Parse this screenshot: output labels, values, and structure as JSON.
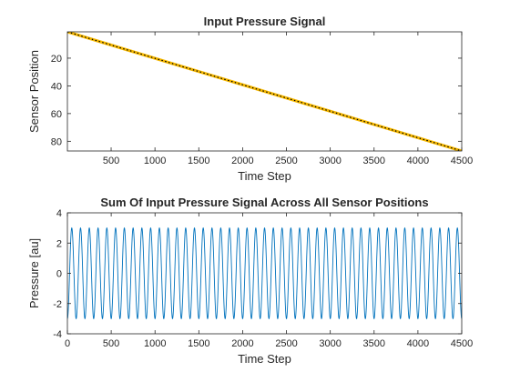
{
  "chart_data": [
    {
      "type": "heatmap",
      "title": "Input Pressure Signal",
      "xlabel": "Time Step",
      "ylabel": "Sensor Position",
      "xlim": [
        1,
        4500
      ],
      "ylim": [
        1,
        87
      ],
      "y_reversed": true,
      "xticks": [
        500,
        1000,
        1500,
        2000,
        2500,
        3000,
        3500,
        4000,
        4500
      ],
      "yticks": [
        20,
        40,
        60,
        80
      ],
      "diagonal": {
        "from": [
          1,
          1
        ],
        "to": [
          4500,
          87
        ]
      },
      "colors": {
        "band": "#f5b700",
        "line": "#000000"
      }
    },
    {
      "type": "line",
      "title": "Sum Of Input Pressure Signal Across All Sensor Positions",
      "xlabel": "Time Step",
      "ylabel": "Pressure [au]",
      "xlim": [
        0,
        4500
      ],
      "ylim": [
        -4,
        4
      ],
      "xticks": [
        0,
        500,
        1000,
        1500,
        2000,
        2500,
        3000,
        3500,
        4000,
        4500
      ],
      "yticks": [
        -4,
        -2,
        0,
        2,
        4
      ],
      "series": [
        {
          "amplitude": 3,
          "period": 100,
          "x_start": 0,
          "x_end": 4500,
          "color": "#0072bd"
        }
      ]
    }
  ]
}
